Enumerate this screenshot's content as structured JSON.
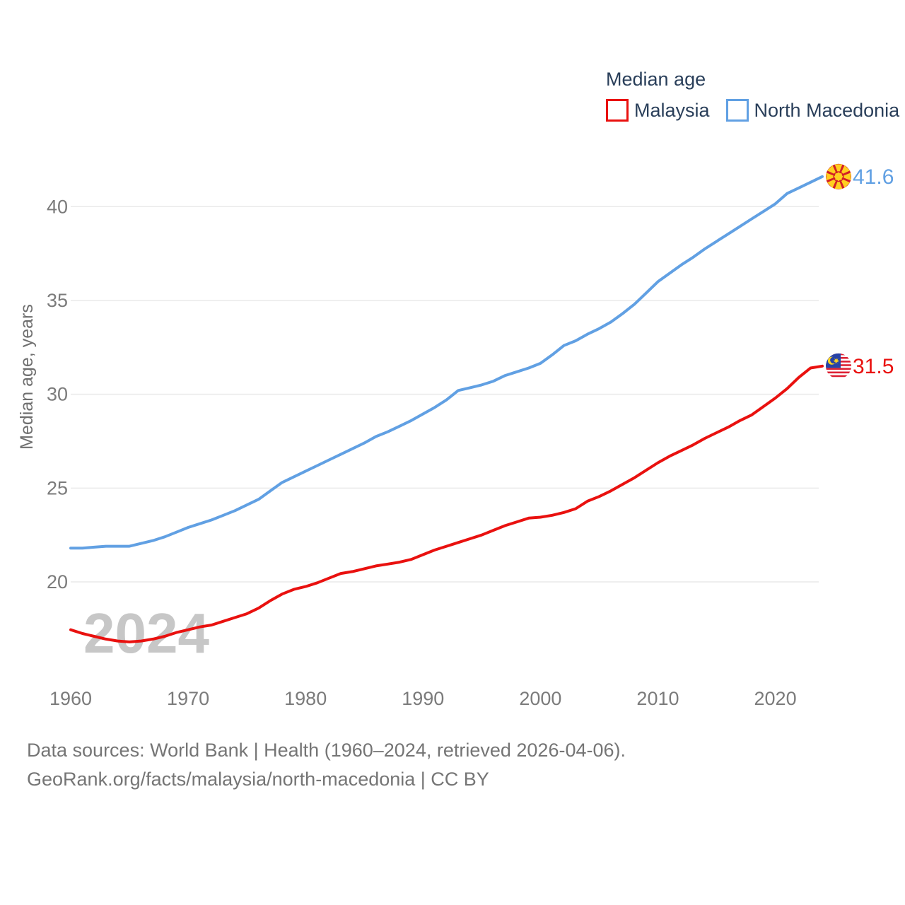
{
  "legend": {
    "title": "Median age",
    "items": [
      {
        "label": "Malaysia",
        "color": "#e9110f"
      },
      {
        "label": "North Macedonia",
        "color": "#61a0e3"
      }
    ]
  },
  "watermark": "2024",
  "footer": {
    "line1": "Data sources: World Bank | Health (1960–2024, retrieved 2026-04-06).",
    "line2": "GeoRank.org/facts/malaysia/north-macedonia | CC BY"
  },
  "chart_data": {
    "type": "line",
    "title": "Median age",
    "ylabel": "Median age, years",
    "x_range": [
      1960,
      2024
    ],
    "ylim": [
      16.5,
      42.5
    ],
    "x_ticks": [
      1960,
      1970,
      1980,
      1990,
      2000,
      2010,
      2020
    ],
    "y_ticks": [
      20,
      25,
      30,
      35,
      40
    ],
    "grid": true,
    "legend_position": "top-right",
    "years": [
      1960,
      1961,
      1962,
      1963,
      1964,
      1965,
      1966,
      1967,
      1968,
      1969,
      1970,
      1971,
      1972,
      1973,
      1974,
      1975,
      1976,
      1977,
      1978,
      1979,
      1980,
      1981,
      1982,
      1983,
      1984,
      1985,
      1986,
      1987,
      1988,
      1989,
      1990,
      1991,
      1992,
      1993,
      1994,
      1995,
      1996,
      1997,
      1998,
      1999,
      2000,
      2001,
      2002,
      2003,
      2004,
      2005,
      2006,
      2007,
      2008,
      2009,
      2010,
      2011,
      2012,
      2013,
      2014,
      2015,
      2016,
      2017,
      2018,
      2019,
      2020,
      2021,
      2022,
      2023,
      2024
    ],
    "series": [
      {
        "name": "Malaysia",
        "color": "#e9110f",
        "flag": "malaysia",
        "end_label": "31.5",
        "values": [
          17.45,
          17.25,
          17.1,
          16.95,
          16.85,
          16.8,
          16.85,
          16.95,
          17.1,
          17.3,
          17.45,
          17.6,
          17.7,
          17.9,
          18.1,
          18.3,
          18.6,
          19.0,
          19.35,
          19.6,
          19.75,
          19.95,
          20.2,
          20.45,
          20.55,
          20.7,
          20.85,
          20.95,
          21.05,
          21.2,
          21.45,
          21.7,
          21.9,
          22.1,
          22.3,
          22.5,
          22.75,
          23.0,
          23.2,
          23.4,
          23.45,
          23.55,
          23.7,
          23.9,
          24.3,
          24.55,
          24.85,
          25.2,
          25.55,
          25.95,
          26.35,
          26.7,
          27.0,
          27.3,
          27.65,
          27.95,
          28.25,
          28.6,
          28.9,
          29.35,
          29.8,
          30.3,
          30.9,
          31.4,
          31.5
        ]
      },
      {
        "name": "North Macedonia",
        "color": "#61a0e3",
        "flag": "north-macedonia",
        "end_label": "41.6",
        "values": [
          21.8,
          21.8,
          21.85,
          21.9,
          21.9,
          21.9,
          22.05,
          22.2,
          22.4,
          22.65,
          22.9,
          23.1,
          23.3,
          23.55,
          23.8,
          24.1,
          24.4,
          24.85,
          25.3,
          25.6,
          25.9,
          26.2,
          26.5,
          26.8,
          27.1,
          27.4,
          27.75,
          28.0,
          28.3,
          28.6,
          28.95,
          29.3,
          29.7,
          30.2,
          30.35,
          30.5,
          30.7,
          31.0,
          31.2,
          31.4,
          31.65,
          32.1,
          32.6,
          32.85,
          33.2,
          33.5,
          33.85,
          34.3,
          34.8,
          35.4,
          36.0,
          36.45,
          36.9,
          37.3,
          37.75,
          38.15,
          38.55,
          38.95,
          39.35,
          39.75,
          40.15,
          40.7,
          41.0,
          41.3,
          41.6
        ]
      }
    ]
  }
}
